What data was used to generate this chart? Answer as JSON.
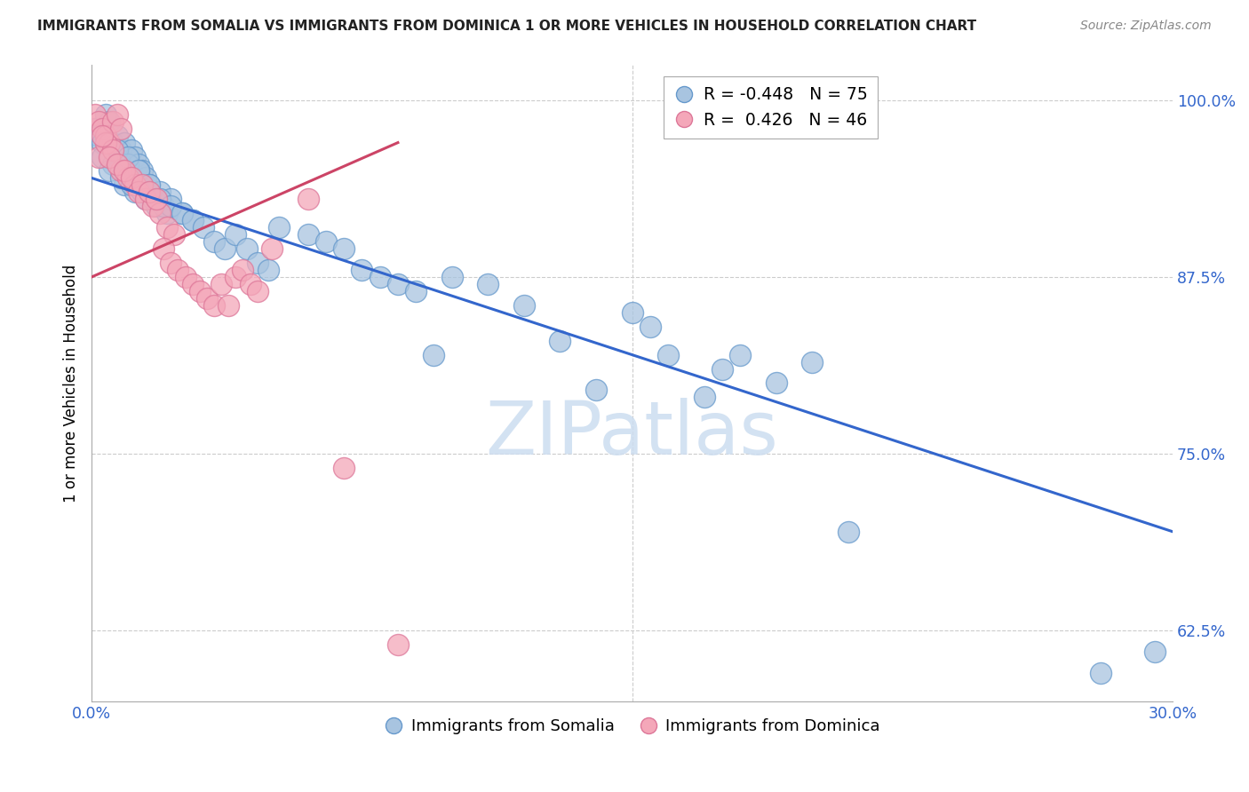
{
  "title": "IMMIGRANTS FROM SOMALIA VS IMMIGRANTS FROM DOMINICA 1 OR MORE VEHICLES IN HOUSEHOLD CORRELATION CHART",
  "source": "Source: ZipAtlas.com",
  "ylabel": "1 or more Vehicles in Household",
  "xlim": [
    0.0,
    0.3
  ],
  "ylim": [
    0.575,
    1.025
  ],
  "somalia_color": "#a8c4e0",
  "somalia_edge_color": "#6699cc",
  "dominica_color": "#f4a7b9",
  "dominica_edge_color": "#dd7799",
  "somalia_line_color": "#3366cc",
  "dominica_line_color": "#cc4466",
  "watermark_color": "#ccddf0",
  "grid_color": "#cccccc",
  "ytick_color": "#3366cc",
  "xtick_color": "#3366cc",
  "somalia_R": -0.448,
  "somalia_N": 75,
  "dominica_R": 0.426,
  "dominica_N": 46,
  "somalia_line_x0": 0.0,
  "somalia_line_y0": 0.945,
  "somalia_line_x1": 0.3,
  "somalia_line_y1": 0.695,
  "dominica_line_x0": 0.0,
  "dominica_line_y0": 0.875,
  "dominica_line_x1": 0.085,
  "dominica_line_y1": 0.97,
  "somalia_x": [
    0.001,
    0.002,
    0.003,
    0.004,
    0.005,
    0.006,
    0.007,
    0.008,
    0.009,
    0.01,
    0.011,
    0.012,
    0.013,
    0.014,
    0.015,
    0.003,
    0.006,
    0.009,
    0.012,
    0.015,
    0.018,
    0.021,
    0.005,
    0.008,
    0.011,
    0.014,
    0.017,
    0.02,
    0.007,
    0.01,
    0.013,
    0.016,
    0.019,
    0.022,
    0.025,
    0.028,
    0.01,
    0.013,
    0.016,
    0.019,
    0.022,
    0.025,
    0.028,
    0.031,
    0.034,
    0.037,
    0.04,
    0.043,
    0.046,
    0.049,
    0.052,
    0.06,
    0.065,
    0.07,
    0.075,
    0.08,
    0.085,
    0.09,
    0.095,
    0.1,
    0.11,
    0.12,
    0.13,
    0.14,
    0.15,
    0.16,
    0.17,
    0.18,
    0.19,
    0.2,
    0.155,
    0.175,
    0.21,
    0.28,
    0.295
  ],
  "somalia_y": [
    0.98,
    0.975,
    0.97,
    0.99,
    0.985,
    0.97,
    0.975,
    0.965,
    0.97,
    0.96,
    0.965,
    0.96,
    0.955,
    0.95,
    0.945,
    0.96,
    0.955,
    0.94,
    0.935,
    0.93,
    0.925,
    0.92,
    0.95,
    0.945,
    0.94,
    0.935,
    0.93,
    0.925,
    0.965,
    0.955,
    0.95,
    0.94,
    0.935,
    0.93,
    0.92,
    0.915,
    0.96,
    0.95,
    0.94,
    0.93,
    0.925,
    0.92,
    0.915,
    0.91,
    0.9,
    0.895,
    0.905,
    0.895,
    0.885,
    0.88,
    0.91,
    0.905,
    0.9,
    0.895,
    0.88,
    0.875,
    0.87,
    0.865,
    0.82,
    0.875,
    0.87,
    0.855,
    0.83,
    0.795,
    0.85,
    0.82,
    0.79,
    0.82,
    0.8,
    0.815,
    0.84,
    0.81,
    0.695,
    0.595,
    0.61
  ],
  "dominica_x": [
    0.001,
    0.002,
    0.003,
    0.004,
    0.005,
    0.006,
    0.007,
    0.008,
    0.002,
    0.004,
    0.006,
    0.008,
    0.01,
    0.012,
    0.003,
    0.005,
    0.007,
    0.009,
    0.011,
    0.013,
    0.015,
    0.017,
    0.019,
    0.021,
    0.023,
    0.014,
    0.016,
    0.018,
    0.02,
    0.022,
    0.024,
    0.026,
    0.028,
    0.03,
    0.032,
    0.034,
    0.036,
    0.038,
    0.04,
    0.042,
    0.044,
    0.046,
    0.05,
    0.06,
    0.07,
    0.085
  ],
  "dominica_y": [
    0.99,
    0.985,
    0.98,
    0.975,
    0.97,
    0.985,
    0.99,
    0.98,
    0.96,
    0.97,
    0.965,
    0.95,
    0.945,
    0.94,
    0.975,
    0.96,
    0.955,
    0.95,
    0.945,
    0.935,
    0.93,
    0.925,
    0.92,
    0.91,
    0.905,
    0.94,
    0.935,
    0.93,
    0.895,
    0.885,
    0.88,
    0.875,
    0.87,
    0.865,
    0.86,
    0.855,
    0.87,
    0.855,
    0.875,
    0.88,
    0.87,
    0.865,
    0.895,
    0.93,
    0.74,
    0.615
  ]
}
